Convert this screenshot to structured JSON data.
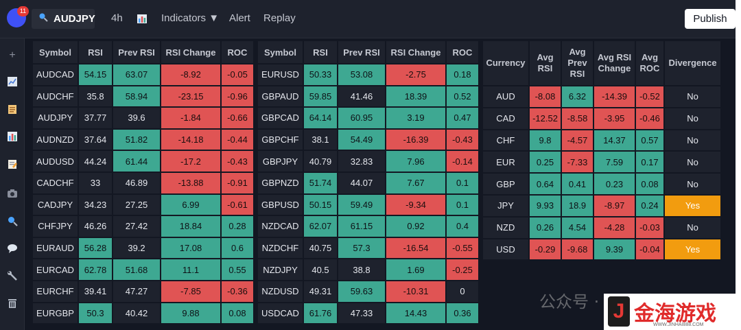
{
  "topbar": {
    "notification_count": "11",
    "symbol": "AUDJPY",
    "timeframe": "4h",
    "indicators": "Indicators ▼",
    "alert": "Alert",
    "replay": "Replay",
    "publish": "Publish"
  },
  "sidebar": {
    "icons": [
      "plus-icon",
      "chart-line-icon",
      "clipboard-icon",
      "bar-chart-icon",
      "note-edit-icon",
      "camera-icon",
      "search-icon",
      "chat-bubble-icon",
      "wrench-icon",
      "trash-icon"
    ]
  },
  "pairs_headers": [
    "Symbol",
    "RSI",
    "Prev RSI",
    "RSI Change",
    "ROC"
  ],
  "pairs_left": [
    {
      "symbol": "AUDCAD",
      "rsi": "54.15",
      "prev": "63.07",
      "change": "-8.92",
      "roc": "-0.05",
      "c": [
        "g",
        "g",
        "r",
        "r"
      ]
    },
    {
      "symbol": "AUDCHF",
      "rsi": "35.8",
      "prev": "58.94",
      "change": "-23.15",
      "roc": "-0.96",
      "c": [
        "n",
        "g",
        "r",
        "r"
      ]
    },
    {
      "symbol": "AUDJPY",
      "rsi": "37.77",
      "prev": "39.6",
      "change": "-1.84",
      "roc": "-0.66",
      "c": [
        "n",
        "n",
        "r",
        "r"
      ]
    },
    {
      "symbol": "AUDNZD",
      "rsi": "37.64",
      "prev": "51.82",
      "change": "-14.18",
      "roc": "-0.44",
      "c": [
        "n",
        "g",
        "r",
        "r"
      ]
    },
    {
      "symbol": "AUDUSD",
      "rsi": "44.24",
      "prev": "61.44",
      "change": "-17.2",
      "roc": "-0.43",
      "c": [
        "n",
        "g",
        "r",
        "r"
      ]
    },
    {
      "symbol": "CADCHF",
      "rsi": "33",
      "prev": "46.89",
      "change": "-13.88",
      "roc": "-0.91",
      "c": [
        "n",
        "n",
        "r",
        "r"
      ]
    },
    {
      "symbol": "CADJPY",
      "rsi": "34.23",
      "prev": "27.25",
      "change": "6.99",
      "roc": "-0.61",
      "c": [
        "n",
        "n",
        "g",
        "r"
      ]
    },
    {
      "symbol": "CHFJPY",
      "rsi": "46.26",
      "prev": "27.42",
      "change": "18.84",
      "roc": "0.28",
      "c": [
        "n",
        "n",
        "g",
        "g"
      ]
    },
    {
      "symbol": "EURAUD",
      "rsi": "56.28",
      "prev": "39.2",
      "change": "17.08",
      "roc": "0.6",
      "c": [
        "g",
        "n",
        "g",
        "g"
      ]
    },
    {
      "symbol": "EURCAD",
      "rsi": "62.78",
      "prev": "51.68",
      "change": "11.1",
      "roc": "0.55",
      "c": [
        "g",
        "g",
        "g",
        "g"
      ]
    },
    {
      "symbol": "EURCHF",
      "rsi": "39.41",
      "prev": "47.27",
      "change": "-7.85",
      "roc": "-0.36",
      "c": [
        "n",
        "n",
        "r",
        "r"
      ]
    },
    {
      "symbol": "EURGBP",
      "rsi": "50.3",
      "prev": "40.42",
      "change": "9.88",
      "roc": "0.08",
      "c": [
        "g",
        "n",
        "g",
        "g"
      ]
    }
  ],
  "pairs_right": [
    {
      "symbol": "EURUSD",
      "rsi": "50.33",
      "prev": "53.08",
      "change": "-2.75",
      "roc": "0.18",
      "c": [
        "g",
        "g",
        "r",
        "g"
      ]
    },
    {
      "symbol": "GBPAUD",
      "rsi": "59.85",
      "prev": "41.46",
      "change": "18.39",
      "roc": "0.52",
      "c": [
        "g",
        "n",
        "g",
        "g"
      ]
    },
    {
      "symbol": "GBPCAD",
      "rsi": "64.14",
      "prev": "60.95",
      "change": "3.19",
      "roc": "0.47",
      "c": [
        "g",
        "g",
        "g",
        "g"
      ]
    },
    {
      "symbol": "GBPCHF",
      "rsi": "38.1",
      "prev": "54.49",
      "change": "-16.39",
      "roc": "-0.43",
      "c": [
        "n",
        "g",
        "r",
        "r"
      ]
    },
    {
      "symbol": "GBPJPY",
      "rsi": "40.79",
      "prev": "32.83",
      "change": "7.96",
      "roc": "-0.14",
      "c": [
        "n",
        "n",
        "g",
        "r"
      ]
    },
    {
      "symbol": "GBPNZD",
      "rsi": "51.74",
      "prev": "44.07",
      "change": "7.67",
      "roc": "0.1",
      "c": [
        "g",
        "n",
        "g",
        "g"
      ]
    },
    {
      "symbol": "GBPUSD",
      "rsi": "50.15",
      "prev": "59.49",
      "change": "-9.34",
      "roc": "0.1",
      "c": [
        "g",
        "g",
        "r",
        "g"
      ]
    },
    {
      "symbol": "NZDCAD",
      "rsi": "62.07",
      "prev": "61.15",
      "change": "0.92",
      "roc": "0.4",
      "c": [
        "g",
        "g",
        "g",
        "g"
      ]
    },
    {
      "symbol": "NZDCHF",
      "rsi": "40.75",
      "prev": "57.3",
      "change": "-16.54",
      "roc": "-0.55",
      "c": [
        "n",
        "g",
        "r",
        "r"
      ]
    },
    {
      "symbol": "NZDJPY",
      "rsi": "40.5",
      "prev": "38.8",
      "change": "1.69",
      "roc": "-0.25",
      "c": [
        "n",
        "n",
        "g",
        "r"
      ]
    },
    {
      "symbol": "NZDUSD",
      "rsi": "49.31",
      "prev": "59.63",
      "change": "-10.31",
      "roc": "0",
      "c": [
        "n",
        "g",
        "r",
        "n"
      ]
    },
    {
      "symbol": "USDCAD",
      "rsi": "61.76",
      "prev": "47.33",
      "change": "14.43",
      "roc": "0.36",
      "c": [
        "g",
        "n",
        "g",
        "g"
      ]
    }
  ],
  "currency_headers": [
    "Currency",
    "Avg RSI",
    "Avg Prev RSI",
    "Avg RSI Change",
    "Avg ROC",
    "Divergence"
  ],
  "currencies": [
    {
      "currency": "AUD",
      "rsi": "-8.08",
      "prev": "6.32",
      "change": "-14.39",
      "roc": "-0.52",
      "div": "No",
      "c": [
        "r",
        "g",
        "r",
        "r",
        "n"
      ]
    },
    {
      "currency": "CAD",
      "rsi": "-12.52",
      "prev": "-8.58",
      "change": "-3.95",
      "roc": "-0.46",
      "div": "No",
      "c": [
        "r",
        "r",
        "r",
        "r",
        "n"
      ]
    },
    {
      "currency": "CHF",
      "rsi": "9.8",
      "prev": "-4.57",
      "change": "14.37",
      "roc": "0.57",
      "div": "No",
      "c": [
        "g",
        "r",
        "g",
        "g",
        "n"
      ]
    },
    {
      "currency": "EUR",
      "rsi": "0.25",
      "prev": "-7.33",
      "change": "7.59",
      "roc": "0.17",
      "div": "No",
      "c": [
        "g",
        "r",
        "g",
        "g",
        "n"
      ]
    },
    {
      "currency": "GBP",
      "rsi": "0.64",
      "prev": "0.41",
      "change": "0.23",
      "roc": "0.08",
      "div": "No",
      "c": [
        "g",
        "g",
        "g",
        "g",
        "n"
      ]
    },
    {
      "currency": "JPY",
      "rsi": "9.93",
      "prev": "18.9",
      "change": "-8.97",
      "roc": "0.24",
      "div": "Yes",
      "c": [
        "g",
        "g",
        "r",
        "g",
        "o"
      ]
    },
    {
      "currency": "NZD",
      "rsi": "0.26",
      "prev": "4.54",
      "change": "-4.28",
      "roc": "-0.03",
      "div": "No",
      "c": [
        "g",
        "g",
        "r",
        "r",
        "n"
      ]
    },
    {
      "currency": "USD",
      "rsi": "-0.29",
      "prev": "-9.68",
      "change": "9.39",
      "roc": "-0.04",
      "div": "Yes",
      "c": [
        "r",
        "r",
        "g",
        "r",
        "o"
      ]
    }
  ],
  "watermark": {
    "text": "公众号 · 晨子说",
    "brand_glyph": "J",
    "brand": "金海游戏",
    "url": "WWW.JINHAI888.COM"
  }
}
